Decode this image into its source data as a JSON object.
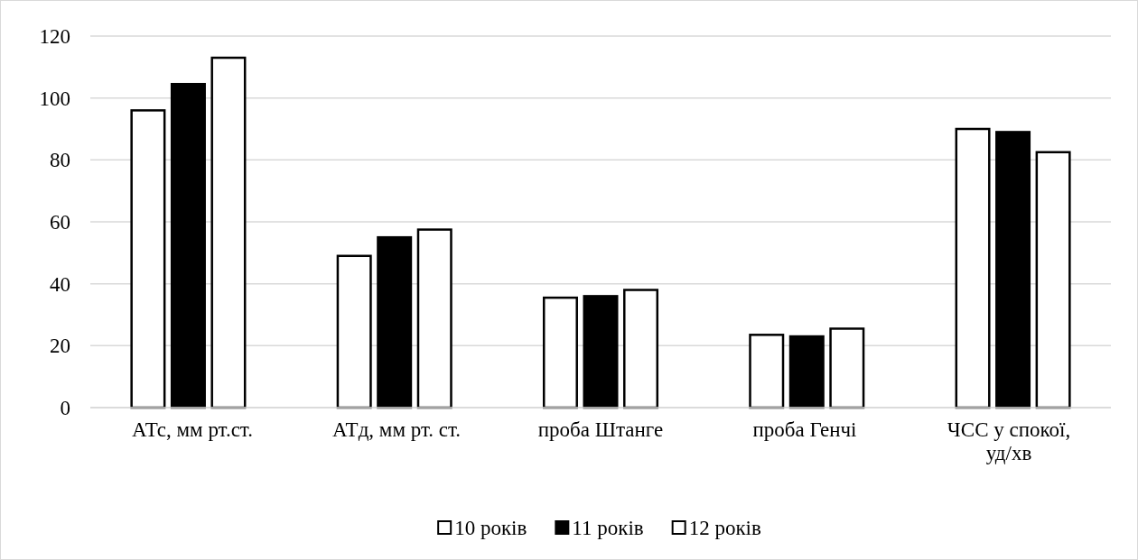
{
  "chart_data": {
    "type": "bar",
    "categories": [
      "АТс, мм рт.ст.",
      "АТд, мм рт. ст.",
      "проба Штанге",
      "проба Генчі",
      "ЧСС у спокої, уд/хв"
    ],
    "series": [
      {
        "name": "10 років",
        "color": "#ffffff",
        "values": [
          96,
          49,
          35.5,
          23.5,
          90
        ]
      },
      {
        "name": "11 років",
        "color": "#000000",
        "values": [
          104.5,
          55,
          36,
          23,
          89
        ]
      },
      {
        "name": "12 років",
        "color": "#ffffff",
        "values": [
          113,
          57.5,
          38,
          25.5,
          82.5
        ]
      }
    ],
    "ylim": [
      0,
      120
    ],
    "yticks": [
      0,
      20,
      40,
      60,
      80,
      100,
      120
    ],
    "grid": "y",
    "legend": "bottom"
  }
}
